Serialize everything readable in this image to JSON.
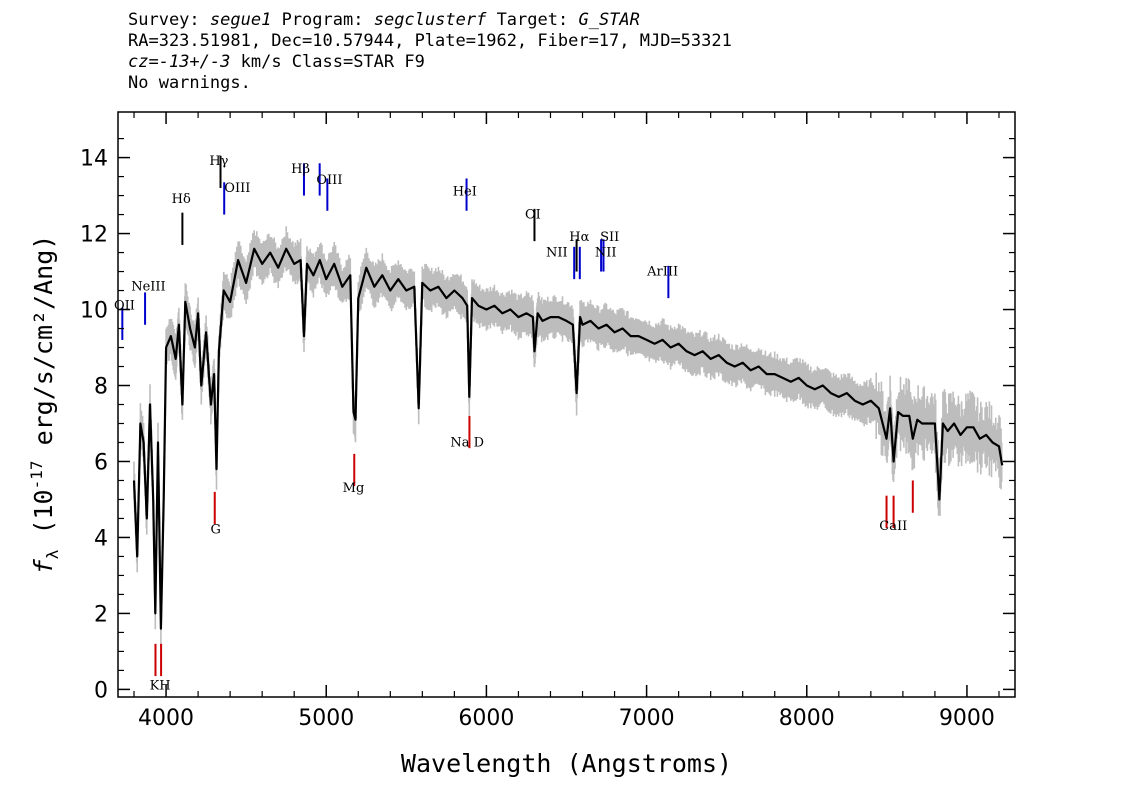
{
  "header": {
    "survey_label": "Survey:",
    "survey": "segue1",
    "program_label": "Program:",
    "program": "segclusterf",
    "target_label": "Target:",
    "target": "G_STAR",
    "line2": "RA=323.51981, Dec=10.57944, Plate=1962, Fiber=17, MJD=53321",
    "cz_label": "cz=",
    "cz": "-13+/-3",
    "cz_units": " km/s Class=STAR F9",
    "warnings": "No warnings."
  },
  "chart_data": {
    "type": "line",
    "xlabel": "Wavelength (Angstroms)",
    "ylabel": "f_λ (10^-17 erg/s/cm²/Ang)",
    "xlim": [
      3700,
      9300
    ],
    "ylim": [
      -0.2,
      15.2
    ],
    "x_ticks": [
      4000,
      5000,
      6000,
      7000,
      8000,
      9000
    ],
    "y_ticks": [
      0,
      2,
      4,
      6,
      8,
      10,
      12,
      14
    ],
    "series": [
      {
        "color": "#000000",
        "x": [
          3800,
          3820,
          3840,
          3860,
          3880,
          3900,
          3920,
          3933,
          3950,
          3968,
          3985,
          4000,
          4030,
          4060,
          4080,
          4102,
          4120,
          4150,
          4180,
          4200,
          4220,
          4250,
          4280,
          4300,
          4315,
          4330,
          4360,
          4400,
          4450,
          4500,
          4550,
          4600,
          4650,
          4700,
          4750,
          4800,
          4840,
          4861,
          4880,
          4920,
          4960,
          5000,
          5050,
          5100,
          5150,
          5170,
          5183,
          5200,
          5250,
          5300,
          5350,
          5400,
          5450,
          5500,
          5550,
          5577,
          5600,
          5650,
          5700,
          5750,
          5800,
          5850,
          5880,
          5893,
          5910,
          5950,
          6000,
          6050,
          6100,
          6150,
          6200,
          6250,
          6290,
          6300,
          6320,
          6350,
          6400,
          6450,
          6500,
          6540,
          6563,
          6585,
          6600,
          6650,
          6700,
          6750,
          6800,
          6850,
          6900,
          6950,
          7000,
          7050,
          7100,
          7150,
          7200,
          7250,
          7300,
          7350,
          7400,
          7450,
          7500,
          7550,
          7600,
          7650,
          7700,
          7750,
          7800,
          7850,
          7900,
          7950,
          8000,
          8050,
          8100,
          8150,
          8200,
          8250,
          8300,
          8350,
          8400,
          8450,
          8498,
          8520,
          8542,
          8570,
          8600,
          8640,
          8662,
          8690,
          8720,
          8760,
          8800,
          8828,
          8850,
          8880,
          8920,
          8960,
          9000,
          9040,
          9080,
          9120,
          9160,
          9200,
          9220
        ],
        "y": [
          5.5,
          3.5,
          7.0,
          6.5,
          4.5,
          7.5,
          5.0,
          2.0,
          6.5,
          1.6,
          5.0,
          9.0,
          9.3,
          8.7,
          9.6,
          7.5,
          10.2,
          9.5,
          9.0,
          9.9,
          8.0,
          9.4,
          7.5,
          8.3,
          5.8,
          8.9,
          10.5,
          10.2,
          11.3,
          10.7,
          11.6,
          11.2,
          11.5,
          11.1,
          11.6,
          11.2,
          11.3,
          9.3,
          11.2,
          10.9,
          11.3,
          10.8,
          11.2,
          10.6,
          10.9,
          7.3,
          7.1,
          10.3,
          11.1,
          10.6,
          10.9,
          10.5,
          10.8,
          10.5,
          10.6,
          7.4,
          10.7,
          10.5,
          10.6,
          10.3,
          10.5,
          10.3,
          10.1,
          7.7,
          10.3,
          10.1,
          10.0,
          10.1,
          9.9,
          10.0,
          9.8,
          9.9,
          9.8,
          8.9,
          9.9,
          9.7,
          9.8,
          9.8,
          9.7,
          9.6,
          7.8,
          9.8,
          9.6,
          9.7,
          9.5,
          9.6,
          9.4,
          9.5,
          9.3,
          9.3,
          9.2,
          9.1,
          9.2,
          9.0,
          9.1,
          8.9,
          8.8,
          8.9,
          8.7,
          8.8,
          8.6,
          8.5,
          8.6,
          8.4,
          8.5,
          8.3,
          8.3,
          8.2,
          8.1,
          8.2,
          8.0,
          7.9,
          8.0,
          7.8,
          7.7,
          7.8,
          7.6,
          7.5,
          7.6,
          7.4,
          6.6,
          7.4,
          6.0,
          7.3,
          7.2,
          7.2,
          6.6,
          7.1,
          7.0,
          7.0,
          7.0,
          5.0,
          7.0,
          6.8,
          7.0,
          6.7,
          6.9,
          6.9,
          6.6,
          6.7,
          6.5,
          6.4,
          5.9
        ]
      }
    ],
    "emission_lines": [
      {
        "label": "OII",
        "x": 3727,
        "y": 9.2,
        "color": "#0000cc"
      },
      {
        "label": "NeIII",
        "x": 3869,
        "y": 9.6,
        "color": "#0000cc"
      },
      {
        "label": "Hδ",
        "x": 4102,
        "y": 11.7,
        "color": "#000000"
      },
      {
        "label": "Hγ",
        "x": 4340,
        "y": 13.2,
        "color": "#000000"
      },
      {
        "label": "OIII",
        "x": 4363,
        "y": 12.5,
        "color": "#0000cc"
      },
      {
        "label": "Hβ",
        "x": 4861,
        "y": 13.0,
        "color": "#0000cc"
      },
      {
        "label": "OIII",
        "x": 4959,
        "y": 13.0,
        "color": "#0000cc"
      },
      {
        "label": "OIII",
        "x": 5007,
        "y": 12.6,
        "color": "#0000cc"
      },
      {
        "label": "HeI",
        "x": 5876,
        "y": 12.6,
        "color": "#0000cc"
      },
      {
        "label": "OI",
        "x": 6300,
        "y": 11.8,
        "color": "#000000"
      },
      {
        "label": "NII",
        "x": 6548,
        "y": 10.8,
        "color": "#0000cc"
      },
      {
        "label": "Hα",
        "x": 6563,
        "y": 11.0,
        "color": "#000000"
      },
      {
        "label": "NII",
        "x": 6583,
        "y": 10.8,
        "color": "#0000cc"
      },
      {
        "label": "SII",
        "x": 6716,
        "y": 11.0,
        "color": "#0000cc"
      },
      {
        "label": "SII",
        "x": 6731,
        "y": 11.0,
        "color": "#0000cc"
      },
      {
        "label": "ArIII",
        "x": 7136,
        "y": 10.3,
        "color": "#0000cc"
      }
    ],
    "absorption_lines": [
      {
        "label": "K",
        "x": 3934,
        "y": 1.2,
        "color": "#cc0000"
      },
      {
        "label": "H",
        "x": 3969,
        "y": 1.2,
        "color": "#cc0000"
      },
      {
        "label": "G",
        "x": 4304,
        "y": 5.2,
        "color": "#cc0000"
      },
      {
        "label": "Mg",
        "x": 5175,
        "y": 6.2,
        "color": "#cc0000"
      },
      {
        "label": "Na",
        "x": 5894,
        "y": 7.2,
        "color": "#cc0000"
      },
      {
        "label": "CaII",
        "x": 8498,
        "y": 5.1,
        "color": "#cc0000"
      },
      {
        "label": "CaII",
        "x": 8542,
        "y": 5.1,
        "color": "#cc0000"
      },
      {
        "label": "CaII",
        "x": 8662,
        "y": 5.5,
        "color": "#cc0000"
      }
    ],
    "line_text_labels": [
      {
        "text": "OII",
        "x": 3740,
        "y": 10.0
      },
      {
        "text": "NeIII",
        "x": 3890,
        "y": 10.5
      },
      {
        "text": "Hδ",
        "x": 4095,
        "y": 12.8
      },
      {
        "text": "Hγ",
        "x": 4330,
        "y": 13.8
      },
      {
        "text": "OIII",
        "x": 4445,
        "y": 13.1
      },
      {
        "text": "Hβ",
        "x": 4840,
        "y": 13.6
      },
      {
        "text": "OIII",
        "x": 5020,
        "y": 13.3
      },
      {
        "text": "HeI",
        "x": 5865,
        "y": 13.0
      },
      {
        "text": "OI",
        "x": 6290,
        "y": 12.4
      },
      {
        "text": "NII",
        "x": 6440,
        "y": 11.4
      },
      {
        "text": "Hα",
        "x": 6580,
        "y": 11.8
      },
      {
        "text": "NII",
        "x": 6745,
        "y": 11.4
      },
      {
        "text": "SII",
        "x": 6770,
        "y": 11.8
      },
      {
        "text": "ArIII",
        "x": 7100,
        "y": 10.9
      },
      {
        "text": "KH",
        "x": 3963,
        "y": 0.0
      },
      {
        "text": "G",
        "x": 4310,
        "y": 4.1
      },
      {
        "text": "Mg",
        "x": 5170,
        "y": 5.2
      },
      {
        "text": "Na D",
        "x": 5880,
        "y": 6.4
      },
      {
        "text": "CaII",
        "x": 8540,
        "y": 4.2
      }
    ]
  }
}
